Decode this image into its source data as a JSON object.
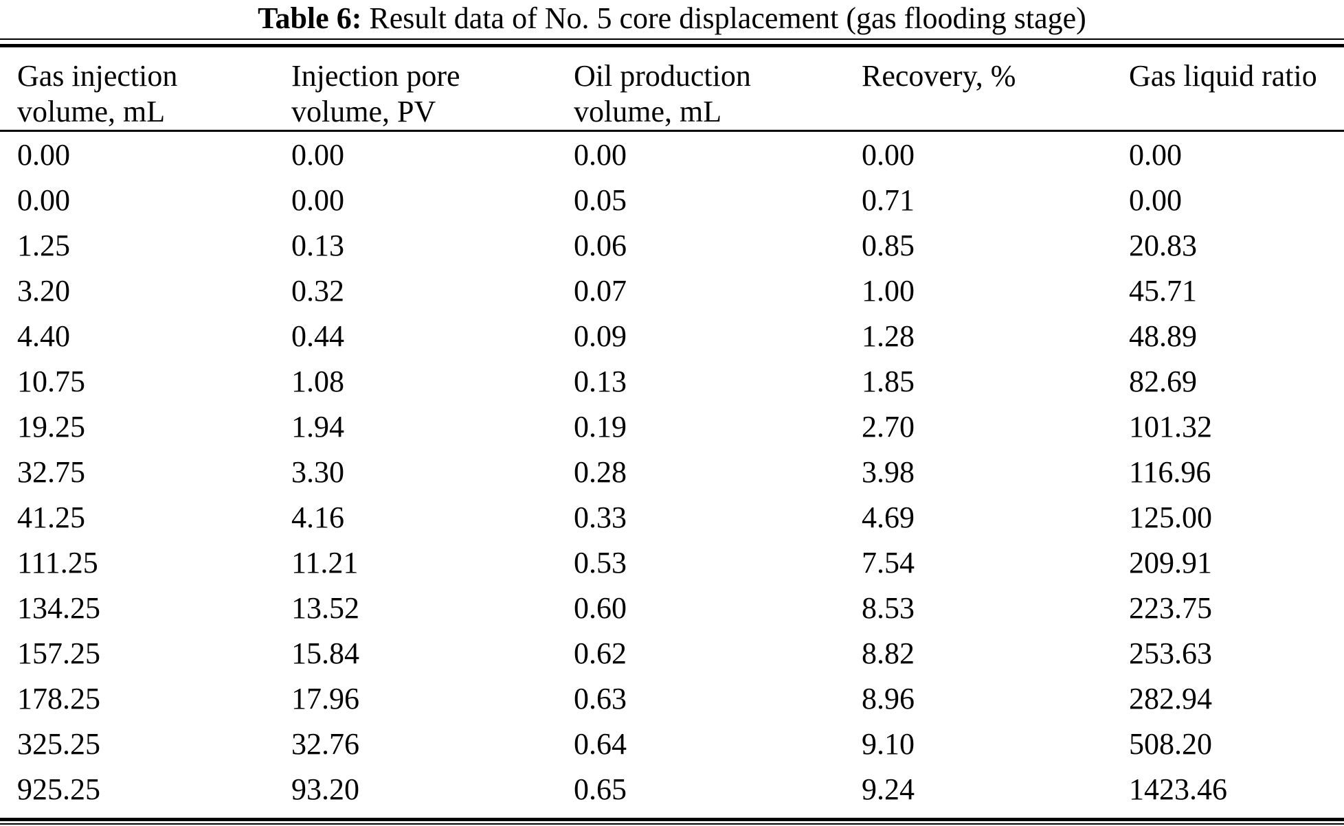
{
  "caption": {
    "label": "Table 6:",
    "text": "Result data of No. 5 core displacement (gas flooding stage)"
  },
  "table": {
    "columns": [
      "Gas injection\nvolume, mL",
      "Injection pore\nvolume, PV",
      "Oil production\nvolume, mL",
      "Recovery, %",
      "Gas liquid ratio"
    ],
    "rows": [
      [
        "0.00",
        "0.00",
        "0.00",
        "0.00",
        "0.00"
      ],
      [
        "0.00",
        "0.00",
        "0.05",
        "0.71",
        "0.00"
      ],
      [
        "1.25",
        "0.13",
        "0.06",
        "0.85",
        "20.83"
      ],
      [
        "3.20",
        "0.32",
        "0.07",
        "1.00",
        "45.71"
      ],
      [
        "4.40",
        "0.44",
        "0.09",
        "1.28",
        "48.89"
      ],
      [
        "10.75",
        "1.08",
        "0.13",
        "1.85",
        "82.69"
      ],
      [
        "19.25",
        "1.94",
        "0.19",
        "2.70",
        "101.32"
      ],
      [
        "32.75",
        "3.30",
        "0.28",
        "3.98",
        "116.96"
      ],
      [
        "41.25",
        "4.16",
        "0.33",
        "4.69",
        "125.00"
      ],
      [
        "111.25",
        "11.21",
        "0.53",
        "7.54",
        "209.91"
      ],
      [
        "134.25",
        "13.52",
        "0.60",
        "8.53",
        "223.75"
      ],
      [
        "157.25",
        "15.84",
        "0.62",
        "8.82",
        "253.63"
      ],
      [
        "178.25",
        "17.96",
        "0.63",
        "8.96",
        "282.94"
      ],
      [
        "325.25",
        "32.76",
        "0.64",
        "9.10",
        "508.20"
      ],
      [
        "925.25",
        "93.20",
        "0.65",
        "9.24",
        "1423.46"
      ]
    ]
  },
  "colors": {
    "text": "#000000",
    "background": "#ffffff",
    "rule": "#000000"
  }
}
